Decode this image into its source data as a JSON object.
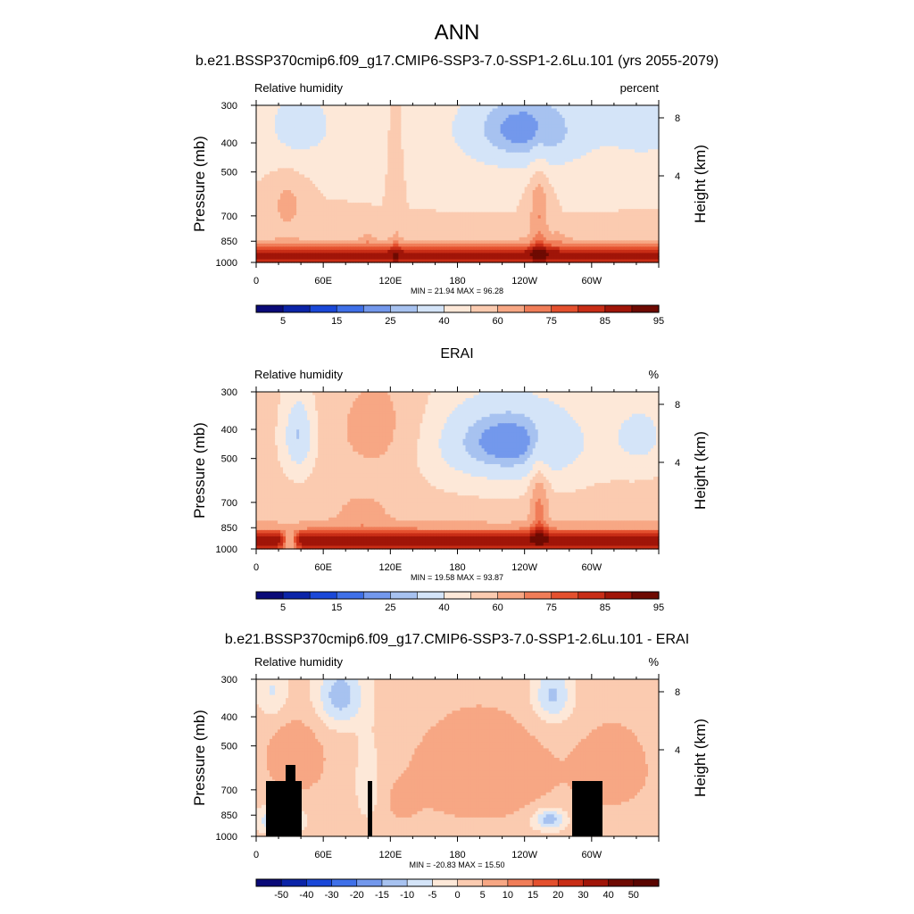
{
  "figure": {
    "title": "ANN"
  },
  "chart_data": [
    {
      "type": "heatmap",
      "title": "b.e21.BSSP370cmip6.f09_g17.CMIP6-SSP3-7.0-SSP1-2.6Lu.101 (yrs 2055-2079)",
      "left_label": "Relative humidity",
      "right_label": "percent",
      "ylabel": "Pressure (mb)",
      "y2label": "Height (km)",
      "y_ticks": [
        "300",
        "400",
        "500",
        "700",
        "850",
        "1000"
      ],
      "y2_ticks": [
        "8",
        "4"
      ],
      "x_ticks": [
        "0",
        "60E",
        "120E",
        "180",
        "120W",
        "60W"
      ],
      "stats": "MIN = 21.94  MAX = 96.28",
      "colorbar_labels": [
        "5",
        "15",
        "25",
        "40",
        "60",
        "75",
        "85",
        "95"
      ],
      "colorbar_colors": [
        "#0a0a78",
        "#0b24a8",
        "#1a48d8",
        "#3f70e8",
        "#7398ec",
        "#a7c2f0",
        "#d4e4f8",
        "#fde8d8",
        "#fbcbb0",
        "#f7a784",
        "#f07d58",
        "#e4502e",
        "#c82d16",
        "#a01508",
        "#6e0a02"
      ],
      "field": "rh_model"
    },
    {
      "type": "heatmap",
      "title": "ERAI",
      "left_label": "Relative humidity",
      "right_label": "%",
      "ylabel": "Pressure (mb)",
      "y2label": "Height (km)",
      "y_ticks": [
        "300",
        "400",
        "500",
        "700",
        "850",
        "1000"
      ],
      "y2_ticks": [
        "8",
        "4"
      ],
      "x_ticks": [
        "0",
        "60E",
        "120E",
        "180",
        "120W",
        "60W"
      ],
      "stats": "MIN = 19.58  MAX = 93.87",
      "colorbar_labels": [
        "5",
        "15",
        "25",
        "40",
        "60",
        "75",
        "85",
        "95"
      ],
      "colorbar_colors": [
        "#0a0a78",
        "#0b24a8",
        "#1a48d8",
        "#3f70e8",
        "#7398ec",
        "#a7c2f0",
        "#d4e4f8",
        "#fde8d8",
        "#fbcbb0",
        "#f7a784",
        "#f07d58",
        "#e4502e",
        "#c82d16",
        "#a01508",
        "#6e0a02"
      ],
      "field": "rh_obs"
    },
    {
      "type": "heatmap",
      "title": "b.e21.BSSP370cmip6.f09_g17.CMIP6-SSP3-7.0-SSP1-2.6Lu.101 - ERAI",
      "left_label": "Relative humidity",
      "right_label": "%",
      "ylabel": "Pressure (mb)",
      "y2label": "Height (km)",
      "y_ticks": [
        "300",
        "400",
        "500",
        "700",
        "850",
        "1000"
      ],
      "y2_ticks": [
        "8",
        "4"
      ],
      "x_ticks": [
        "0",
        "60E",
        "120E",
        "180",
        "120W",
        "60W"
      ],
      "stats": "MIN = -20.83  MAX = 15.50",
      "colorbar_labels": [
        "-50",
        "-40",
        "-30",
        "-20",
        "-15",
        "-10",
        "-5",
        "0",
        "5",
        "10",
        "15",
        "20",
        "30",
        "40",
        "50"
      ],
      "colorbar_colors": [
        "#0a0a78",
        "#0b24a8",
        "#1a48d8",
        "#3f70e8",
        "#7398ec",
        "#a7c2f0",
        "#d4e4f8",
        "#fde8d8",
        "#fbcbb0",
        "#f7a784",
        "#f07d58",
        "#e4502e",
        "#c82d16",
        "#a01508",
        "#6e0a02",
        "#5a0500"
      ],
      "field": "rh_diff"
    }
  ]
}
